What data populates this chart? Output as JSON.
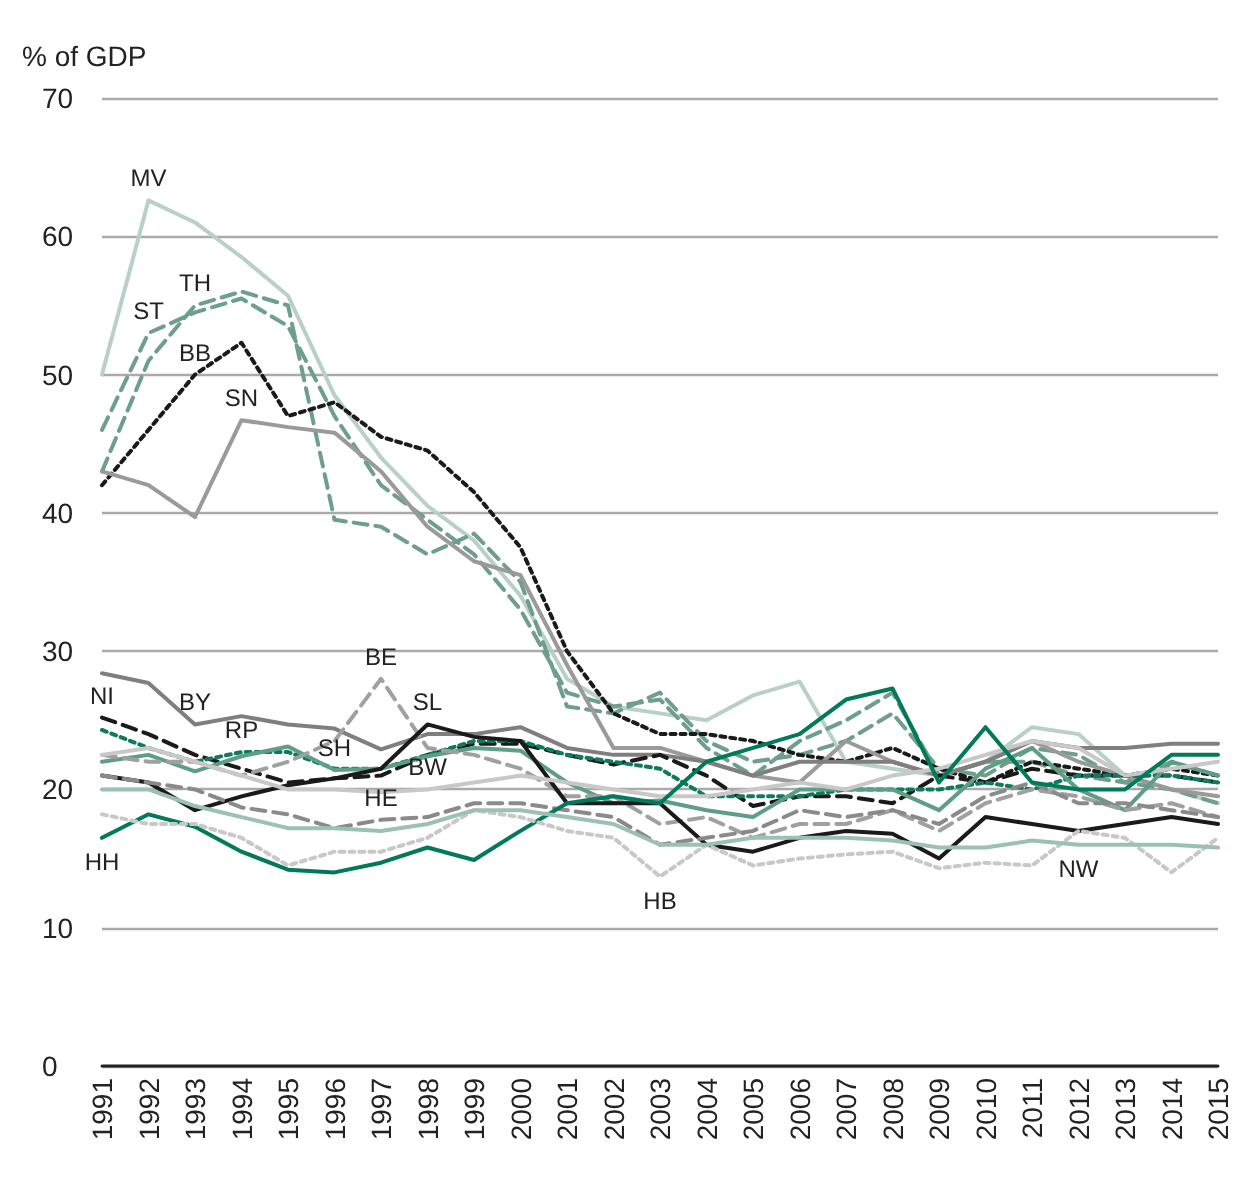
{
  "chart_data": {
    "type": "line",
    "ylabel": "% of GDP",
    "categories": [
      "1991",
      "1992",
      "1993",
      "1994",
      "1995",
      "1996",
      "1997",
      "1998",
      "1999",
      "2000",
      "2001",
      "2002",
      "2003",
      "2004",
      "2005",
      "2006",
      "2007",
      "2008",
      "2009",
      "2010",
      "2011",
      "2012",
      "2013",
      "2014",
      "2015"
    ],
    "ylim": [
      0,
      70
    ],
    "yticks": [
      0,
      10,
      20,
      30,
      40,
      50,
      60,
      70
    ],
    "grid": "y",
    "series": [
      {
        "color": "#b9d0c6",
        "line_style": "solid",
        "values": [
          50,
          62.6,
          61,
          58.5,
          55.7,
          48.5,
          44,
          40.5,
          38,
          34,
          28,
          26,
          25.5,
          25,
          26.8,
          27.8,
          22,
          21.5,
          21,
          22,
          24.5,
          24,
          21,
          20,
          19
        ]
      },
      {
        "color": "#6e9e8c",
        "line_style": "dashed",
        "values": [
          46,
          53,
          54.5,
          55.5,
          53.5,
          47,
          42,
          39.5,
          37,
          33,
          27,
          26,
          26.5,
          23,
          21,
          23.5,
          25,
          27,
          21,
          22,
          22,
          21,
          20.5,
          20,
          19
        ]
      },
      {
        "color": "#6e9e8c",
        "line_style": "dashed",
        "values": [
          43,
          51,
          55,
          56,
          55,
          39.5,
          39,
          37,
          38.5,
          35,
          26,
          25.5,
          27,
          23.5,
          22,
          22.5,
          23.5,
          25.5,
          21.5,
          21,
          23,
          22.5,
          20.5,
          22,
          21
        ]
      },
      {
        "color": "#1a1a1a",
        "line_style": "dotted",
        "values": [
          42,
          46,
          50,
          52.3,
          47,
          48,
          45.5,
          44.5,
          41.5,
          37.5,
          30,
          25.5,
          24,
          24,
          23.5,
          22.5,
          22,
          23,
          21.5,
          20.5,
          22,
          21.5,
          21,
          21.5,
          21
        ]
      },
      {
        "color": "#9a9a9a",
        "line_style": "solid",
        "values": [
          43,
          42,
          39.7,
          46.7,
          46.2,
          45.8,
          43,
          39,
          36.5,
          35.5,
          29,
          23,
          23,
          22,
          21,
          20.5,
          23.5,
          22,
          21,
          22,
          23.5,
          22,
          21,
          20,
          19.5
        ]
      },
      {
        "color": "#7f7f7f",
        "line_style": "solid",
        "values": [
          28.4,
          27.7,
          24.7,
          25.3,
          24.7,
          24.4,
          22.9,
          24,
          24,
          24.5,
          23,
          22.5,
          22.5,
          22,
          21,
          22,
          22,
          22,
          21,
          22,
          23.5,
          23,
          23,
          23.3,
          23.3
        ]
      },
      {
        "color": "#1a1a1a",
        "line_style": "dashed",
        "values": [
          25.2,
          24,
          22.5,
          21.5,
          20.5,
          20.8,
          21,
          22.5,
          23.3,
          23.3,
          22.5,
          21.8,
          22.5,
          21,
          18.8,
          19.5,
          19.5,
          19,
          21,
          20.5,
          21.5,
          21,
          21,
          21,
          20.5
        ]
      },
      {
        "color": "#0e7a5e",
        "line_style": "dotted",
        "values": [
          24.3,
          23,
          22,
          22.7,
          22.7,
          21.5,
          21.5,
          22.5,
          23.5,
          23.5,
          22.5,
          22,
          21.5,
          19.5,
          19.5,
          19.5,
          20,
          20,
          20,
          20.5,
          20,
          21,
          21,
          21,
          20.5
        ]
      },
      {
        "color": "#5e9e86",
        "line_style": "solid",
        "values": [
          22,
          22.5,
          21.3,
          22.4,
          23.1,
          21.4,
          21.5,
          22.4,
          23,
          22.8,
          20.5,
          19,
          19.2,
          18.5,
          18,
          20,
          20,
          20,
          18.5,
          21.5,
          23,
          20,
          18.5,
          22,
          21
        ]
      },
      {
        "color": "#a0a0a0",
        "line_style": "dashed",
        "values": [
          22.5,
          22,
          22,
          21,
          22,
          23.5,
          28,
          23,
          22.5,
          21.5,
          19.5,
          19.5,
          17.5,
          18,
          16.5,
          17.5,
          17.5,
          18.5,
          17,
          19,
          20,
          19.5,
          18.5,
          19,
          18
        ]
      },
      {
        "color": "#1a1a1a",
        "line_style": "solid",
        "values": [
          21,
          20.5,
          18.5,
          19.5,
          20.3,
          20.8,
          21.5,
          24.7,
          23.8,
          23.5,
          19,
          19,
          19,
          16,
          15.5,
          16.5,
          17,
          16.8,
          15,
          18,
          17.5,
          17,
          17.5,
          18,
          17.5
        ]
      },
      {
        "color": "#c8c8c8",
        "line_style": "solid",
        "values": [
          22.5,
          23,
          22,
          21,
          20,
          20,
          19.8,
          20,
          20.5,
          21,
          20.5,
          20,
          19.5,
          19.5,
          20,
          20.5,
          20,
          21,
          21.5,
          22.5,
          23.5,
          23,
          21,
          21.5,
          22
        ]
      },
      {
        "color": "#8a8a8a",
        "line_style": "dashed",
        "values": [
          21,
          20.5,
          20,
          18.7,
          18.2,
          17.2,
          17.8,
          18,
          19,
          19,
          18.5,
          18,
          16,
          16.5,
          17,
          18.5,
          18,
          18.5,
          17.5,
          19.5,
          20.5,
          19,
          19,
          18.5,
          18
        ]
      },
      {
        "color": "#007a5a",
        "line_style": "solid",
        "values": [
          16.5,
          18.2,
          17.3,
          15.5,
          14.2,
          14,
          14.7,
          15.8,
          14.9,
          17,
          19,
          19.5,
          19,
          22,
          23,
          24,
          26.5,
          27.3,
          20.5,
          24.5,
          20.5,
          20,
          20,
          22.5,
          22.5
        ]
      },
      {
        "color": "#c8c8c8",
        "line_style": "dotted",
        "values": [
          18.2,
          17.5,
          17.5,
          16.5,
          14.5,
          15.5,
          15.5,
          16.5,
          18.5,
          18,
          17,
          16.5,
          13.7,
          16,
          14.5,
          15,
          15.3,
          15.5,
          14.3,
          14.7,
          14.5,
          17,
          16.5,
          14,
          16.5
        ]
      },
      {
        "color": "#9cc1b2",
        "line_style": "solid",
        "values": [
          20,
          20,
          18.8,
          18,
          17.2,
          17.2,
          17,
          17.5,
          18.5,
          18.5,
          18,
          17.5,
          16,
          16,
          16.5,
          16.5,
          16.5,
          16.3,
          15.8,
          15.8,
          16.3,
          16,
          16,
          16,
          15.8
        ]
      }
    ],
    "annotations": [
      {
        "text": "MV",
        "x": "1992",
        "y": 62.6
      },
      {
        "text": "ST",
        "x": "1992",
        "y": 53
      },
      {
        "text": "TH",
        "x": "1993",
        "y": 55
      },
      {
        "text": "BB",
        "x": "1993",
        "y": 50
      },
      {
        "text": "SN",
        "x": "1994",
        "y": 46.7
      },
      {
        "text": "BE",
        "x": "1997",
        "y": 28
      },
      {
        "text": "SL",
        "x": "1998",
        "y": 24.7
      },
      {
        "text": "BW",
        "x": "1998",
        "y": 20
      },
      {
        "text": "HE",
        "x": "1997",
        "y": 17.8
      },
      {
        "text": "HH",
        "x": "1991",
        "y": 16.5
      },
      {
        "text": "HB",
        "x": "2003",
        "y": 13.7
      },
      {
        "text": "NW",
        "x": "2012",
        "y": 16
      },
      {
        "text": "NI",
        "x": "1991",
        "y": 25.2
      },
      {
        "text": "BY",
        "x": "1993",
        "y": 24.7
      },
      {
        "text": "RP",
        "x": "1994",
        "y": 22.7
      },
      {
        "text": "SH",
        "x": "1996",
        "y": 21.4
      }
    ]
  }
}
